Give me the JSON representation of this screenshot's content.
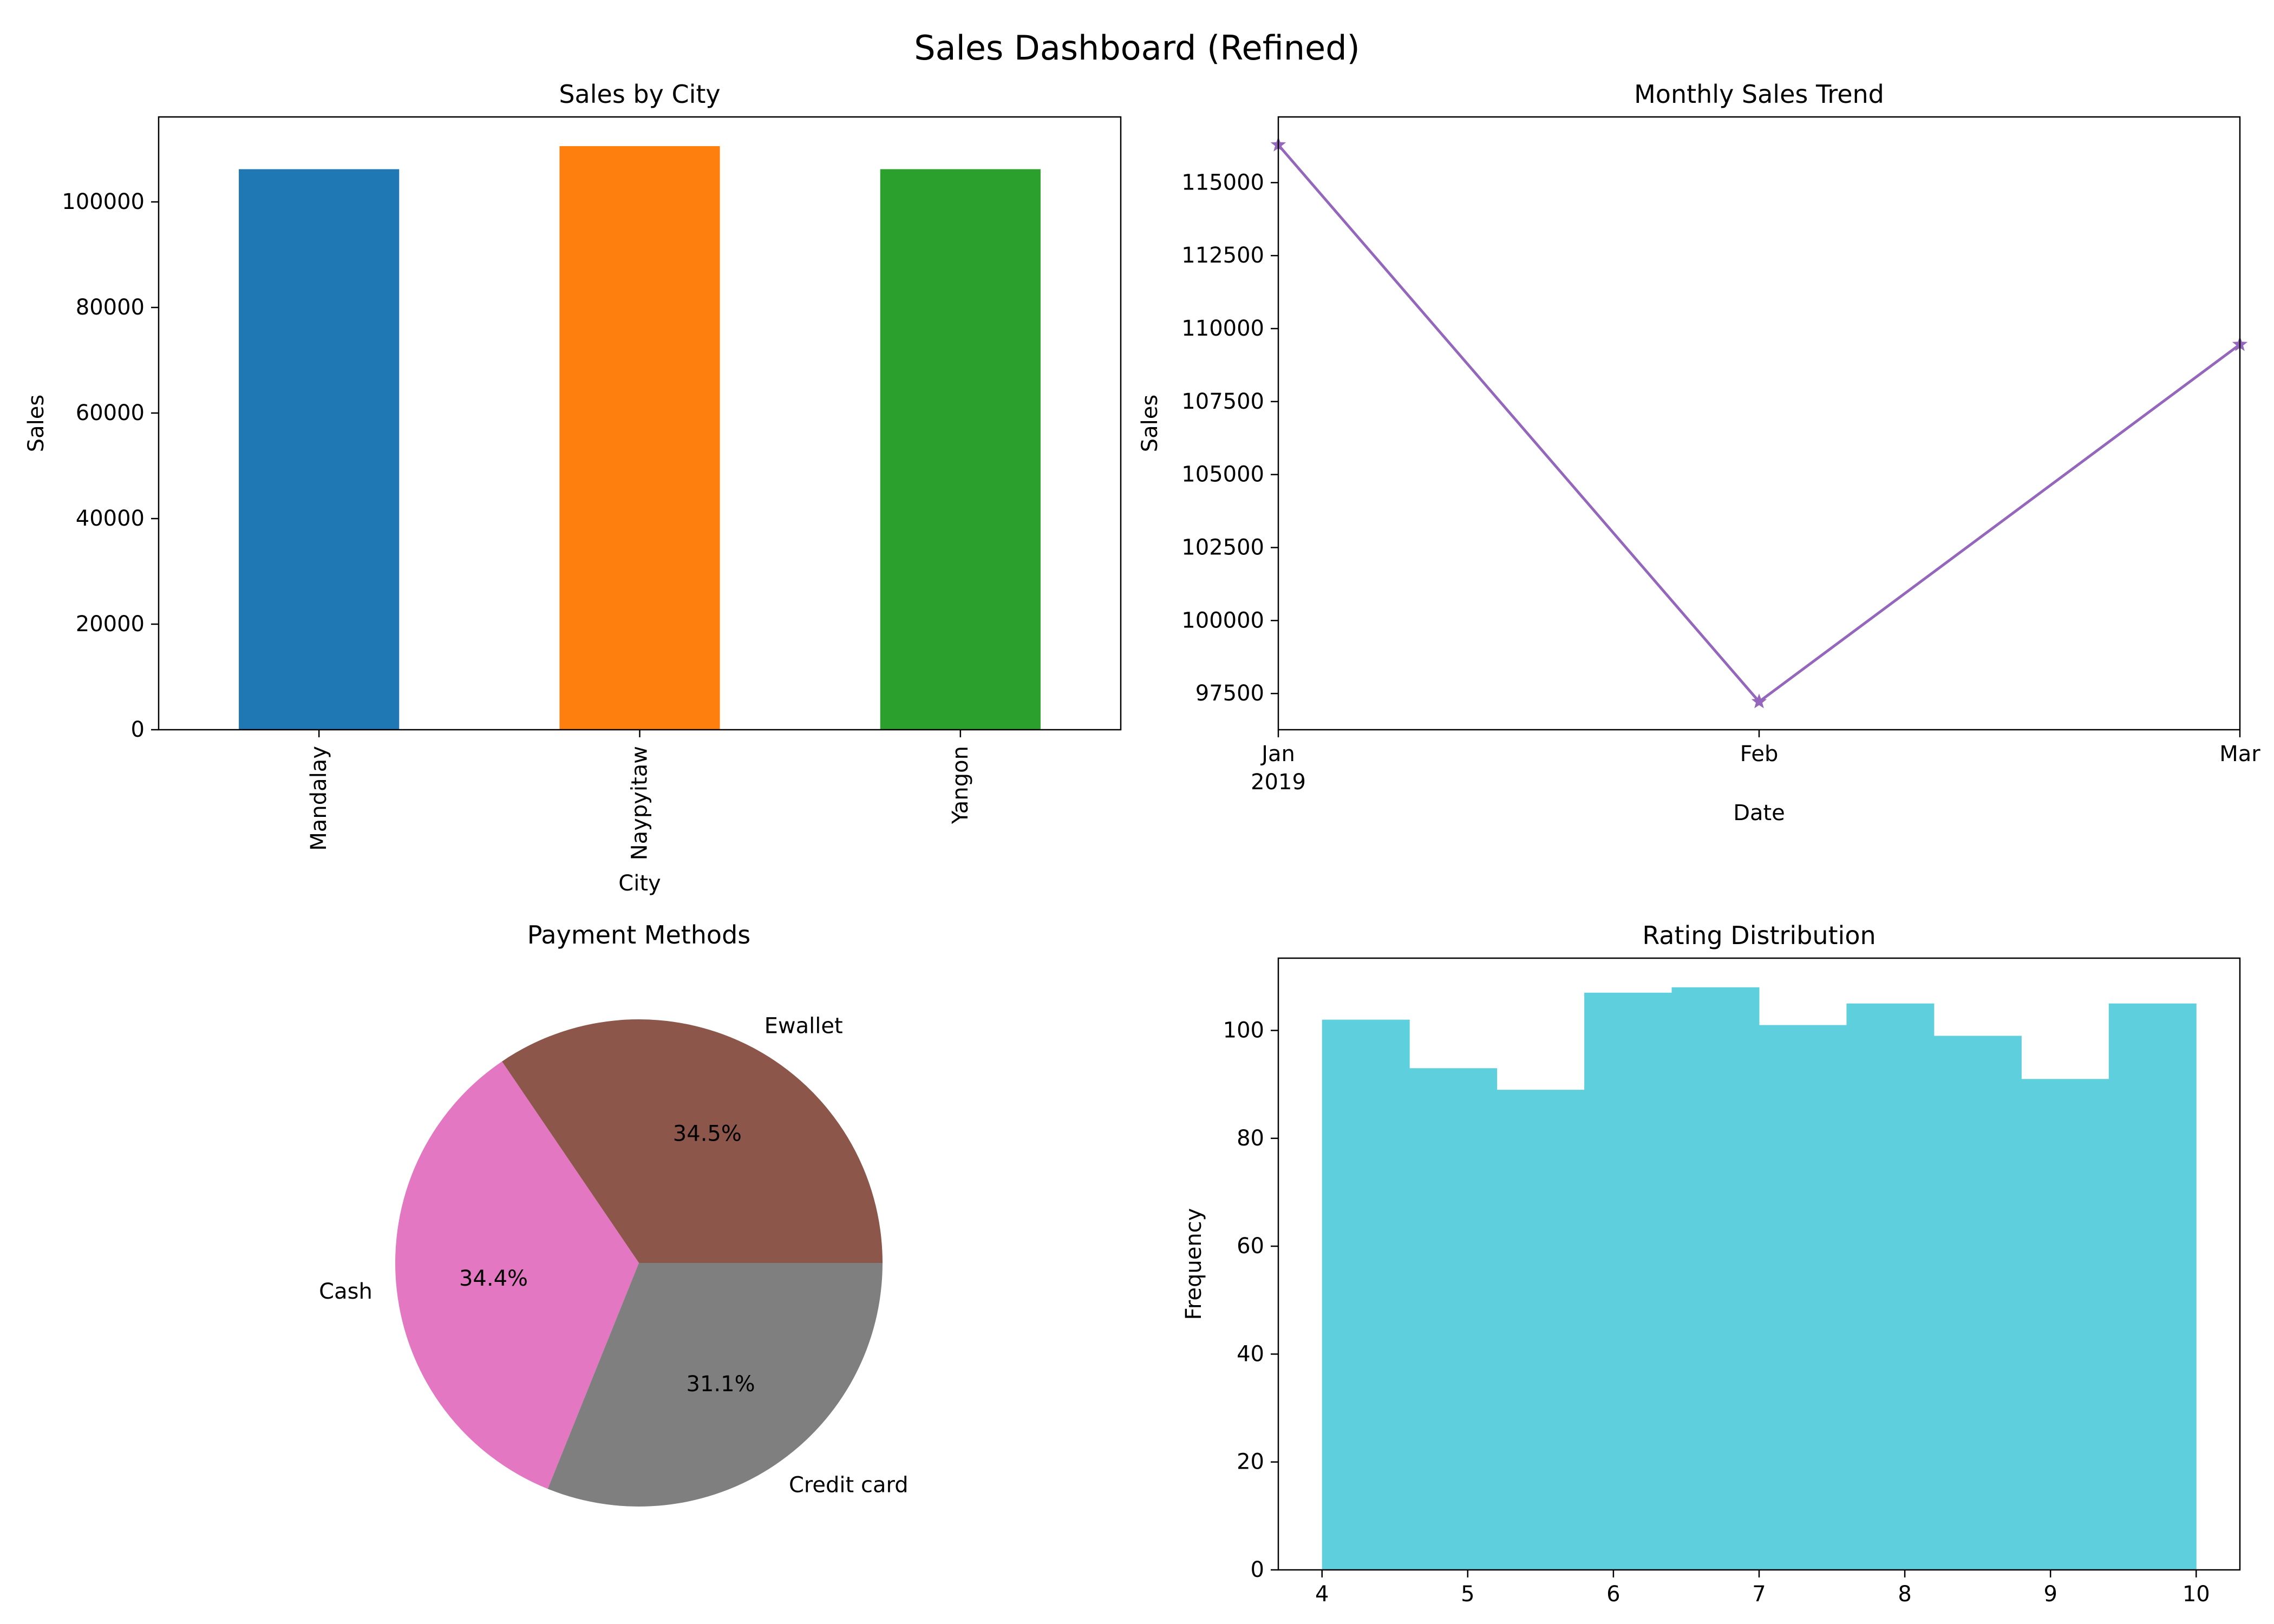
{
  "title": "Sales Dashboard (Refined)",
  "chart_data": [
    {
      "type": "bar",
      "title": "Sales by City",
      "xlabel": "City",
      "ylabel": "Sales",
      "categories": [
        "Mandalay",
        "Naypyitaw",
        "Yangon"
      ],
      "values": [
        106198,
        110569,
        106200
      ],
      "colors": [
        "#1f77b4",
        "#ff7f0e",
        "#2ca02c"
      ],
      "ylim": [
        0,
        116100
      ],
      "yticks": [
        0,
        20000,
        40000,
        60000,
        80000,
        100000
      ],
      "grid": false
    },
    {
      "type": "line",
      "title": "Monthly Sales Trend",
      "xlabel": "Date",
      "ylabel": "Sales",
      "x": [
        "2019-01",
        "2019-02",
        "2019-03"
      ],
      "xtick_labels": [
        "Jan\n2019",
        "Feb",
        "Mar"
      ],
      "values": [
        116292,
        97219,
        109456
      ],
      "color": "#9467bd",
      "marker": "star",
      "ylim": [
        96260,
        117250
      ],
      "yticks": [
        97500,
        100000,
        102500,
        105000,
        107500,
        110000,
        112500,
        115000
      ],
      "grid": false
    },
    {
      "type": "pie",
      "title": "Payment Methods",
      "labels": [
        "Ewallet",
        "Cash",
        "Credit card"
      ],
      "values": [
        34.5,
        34.4,
        31.1
      ],
      "autopct_labels": [
        "34.5%",
        "34.4%",
        "31.1%"
      ],
      "colors": [
        "#8c564b",
        "#e377c2",
        "#7f7f7f"
      ]
    },
    {
      "type": "bar",
      "subtype": "histogram",
      "title": "Rating Distribution",
      "xlabel": "",
      "ylabel": "Frequency",
      "bin_range": [
        4,
        10
      ],
      "counts": [
        102,
        93,
        89,
        107,
        108,
        101,
        105,
        99,
        91,
        105
      ],
      "color": "#5ecfdc",
      "xlim": [
        3.7,
        10.3
      ],
      "ylim": [
        0,
        113.4
      ],
      "xticks": [
        4,
        5,
        6,
        7,
        8,
        9,
        10
      ],
      "yticks": [
        0,
        20,
        40,
        60,
        80,
        100
      ],
      "grid": false
    }
  ]
}
